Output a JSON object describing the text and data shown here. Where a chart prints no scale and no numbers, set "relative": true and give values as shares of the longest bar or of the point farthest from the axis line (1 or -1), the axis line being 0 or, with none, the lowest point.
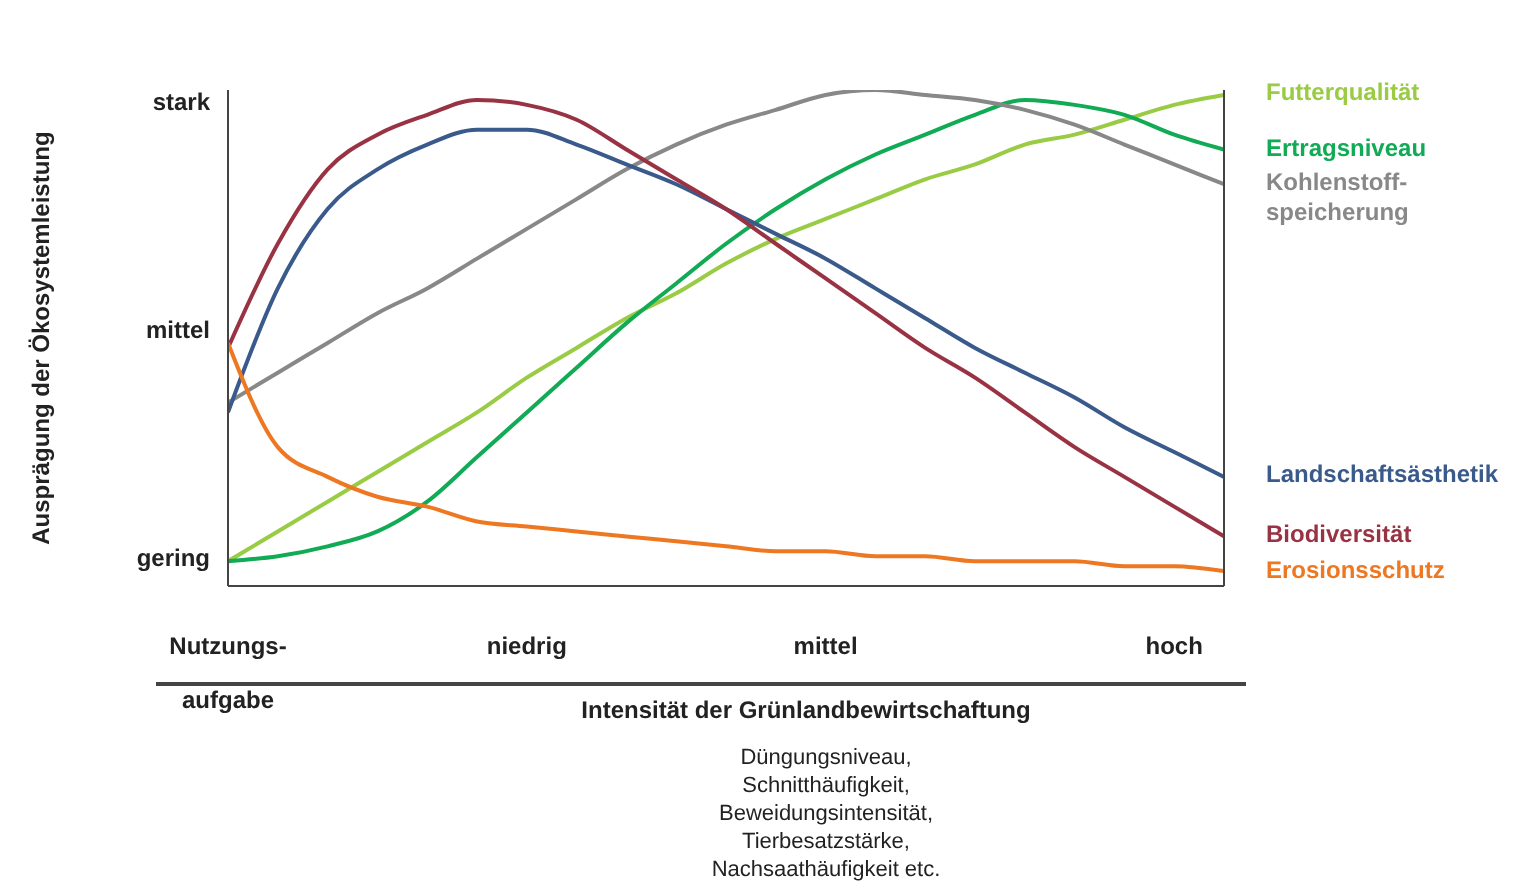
{
  "chart_data": {
    "type": "line",
    "relative": true,
    "ylabel": "Ausprägung der Ökosystemleistung",
    "xlabel": "Intensität der Grünlandbewirtschaftung",
    "categories": [
      "Nutzungs-\naufgabe",
      null,
      null,
      null,
      null,
      null,
      "niedrig",
      null,
      null,
      null,
      null,
      null,
      "mittel",
      null,
      null,
      null,
      null,
      null,
      null,
      "hoch",
      null
    ],
    "legend": "right",
    "annotations": [
      "gering",
      "mittel",
      "stark",
      "Düngungsniveau,\nSchnitthäufigkeit,\nBeweidungsintensität,\nTierbesatzstärke,\nNachsaathäufigkeit etc."
    ],
    "series": [
      {
        "name": "Futterqualität",
        "color": "#99cc44",
        "values": [
          0.05,
          0.11,
          0.17,
          0.23,
          0.29,
          0.35,
          0.42,
          0.48,
          0.54,
          0.59,
          0.65,
          0.7,
          0.74,
          0.78,
          0.82,
          0.85,
          0.89,
          0.91,
          0.94,
          0.97,
          0.99
        ]
      },
      {
        "name": "Ertragsniveau",
        "color": "#11aa55",
        "values": [
          0.05,
          0.06,
          0.08,
          0.11,
          0.17,
          0.26,
          0.35,
          0.44,
          0.53,
          0.61,
          0.69,
          0.76,
          0.82,
          0.87,
          0.91,
          0.95,
          0.98,
          0.97,
          0.95,
          0.91,
          0.88
        ]
      },
      {
        "name": "Kohlenstoff-\nspeicherung",
        "color": "#888888",
        "values": [
          0.37,
          0.43,
          0.49,
          0.55,
          0.6,
          0.66,
          0.72,
          0.78,
          0.84,
          0.89,
          0.93,
          0.96,
          0.99,
          1.0,
          0.99,
          0.98,
          0.96,
          0.93,
          0.89,
          0.85,
          0.81
        ]
      },
      {
        "name": "Landschaftsästhetik",
        "color": "#3a5a8c",
        "values": [
          0.35,
          0.6,
          0.76,
          0.84,
          0.89,
          0.92,
          0.92,
          0.89,
          0.85,
          0.81,
          0.76,
          0.71,
          0.66,
          0.6,
          0.54,
          0.48,
          0.43,
          0.38,
          0.32,
          0.27,
          0.22
        ]
      },
      {
        "name": "Biodiversität",
        "color": "#993344",
        "values": [
          0.48,
          0.69,
          0.84,
          0.91,
          0.95,
          0.98,
          0.97,
          0.94,
          0.88,
          0.82,
          0.76,
          0.69,
          0.62,
          0.55,
          0.48,
          0.42,
          0.35,
          0.28,
          0.22,
          0.16,
          0.1
        ]
      },
      {
        "name": "Erosionsschutz",
        "color": "#ee7722",
        "values": [
          0.49,
          0.28,
          0.22,
          0.18,
          0.16,
          0.13,
          0.12,
          0.11,
          0.1,
          0.09,
          0.08,
          0.07,
          0.07,
          0.06,
          0.06,
          0.05,
          0.05,
          0.05,
          0.04,
          0.04,
          0.03
        ]
      }
    ]
  }
}
